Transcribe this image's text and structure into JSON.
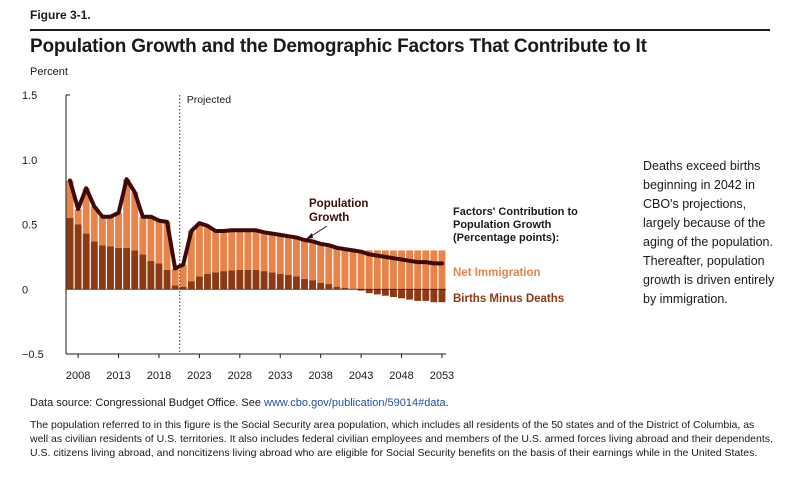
{
  "figure": {
    "label": "Figure 3-1.",
    "title": "Population Growth and the Demographic Factors That Contribute to It",
    "units": "Percent"
  },
  "annotation": "Deaths exceed births beginning in 2042 in CBO's projections, largely because of the aging of the population. Thereafter, population growth is driven entirely by immigration.",
  "source": {
    "prefix": "Data source: Congressional Budget Office. See ",
    "link": "www.cbo.gov/publication/59014#data",
    "suffix": "."
  },
  "footnote": "The population referred to in this figure is the Social Security area population, which includes all residents of the 50 states and of the District of Columbia, as well as civilian residents of U.S. territories. It also includes federal civilian employees and members of the U.S. armed forces living abroad and their dependents, U.S. citizens living abroad, and noncitizens living abroad who are eligible for Social Security benefits on the basis of their earnings while in the United States.",
  "chart_data": {
    "type": "bar",
    "stacked": true,
    "ylim": [
      -0.5,
      1.5
    ],
    "yticks": [
      "1.5",
      "1.0",
      "0.5",
      "0",
      "−0.5"
    ],
    "ytick_values": [
      1.5,
      1.0,
      0.5,
      0,
      -0.5
    ],
    "xticks": [
      "2008",
      "2013",
      "2018",
      "2023",
      "2028",
      "2033",
      "2038",
      "2043",
      "2048",
      "2053"
    ],
    "projection_start": 2021,
    "projected_label": "Projected",
    "legend_title": "Factors' Contribution to Population Growth (Percentage points):",
    "years": [
      2007,
      2008,
      2009,
      2010,
      2011,
      2012,
      2013,
      2014,
      2015,
      2016,
      2017,
      2018,
      2019,
      2020,
      2021,
      2022,
      2023,
      2024,
      2025,
      2026,
      2027,
      2028,
      2029,
      2030,
      2031,
      2032,
      2033,
      2034,
      2035,
      2036,
      2037,
      2038,
      2039,
      2040,
      2041,
      2042,
      2043,
      2044,
      2045,
      2046,
      2047,
      2048,
      2049,
      2050,
      2051,
      2052,
      2053
    ],
    "series": [
      {
        "name": "Births Minus Deaths",
        "color": "#8b3a13",
        "values": [
          0.55,
          0.5,
          0.43,
          0.37,
          0.34,
          0.33,
          0.32,
          0.32,
          0.3,
          0.27,
          0.22,
          0.2,
          0.15,
          0.03,
          0.02,
          0.06,
          0.1,
          0.12,
          0.13,
          0.14,
          0.145,
          0.15,
          0.15,
          0.15,
          0.14,
          0.13,
          0.12,
          0.11,
          0.1,
          0.08,
          0.07,
          0.05,
          0.04,
          0.02,
          0.01,
          0.0,
          -0.01,
          -0.03,
          -0.04,
          -0.05,
          -0.06,
          -0.07,
          -0.08,
          -0.09,
          -0.09,
          -0.1,
          -0.1
        ]
      },
      {
        "name": "Net Immigration",
        "color": "#e8834a",
        "values": [
          0.29,
          0.12,
          0.35,
          0.27,
          0.22,
          0.23,
          0.27,
          0.53,
          0.45,
          0.29,
          0.34,
          0.33,
          0.37,
          0.13,
          0.17,
          0.39,
          0.41,
          0.37,
          0.32,
          0.31,
          0.31,
          0.305,
          0.305,
          0.305,
          0.3,
          0.3,
          0.3,
          0.3,
          0.3,
          0.3,
          0.3,
          0.3,
          0.3,
          0.3,
          0.3,
          0.3,
          0.3,
          0.3,
          0.3,
          0.3,
          0.3,
          0.3,
          0.3,
          0.3,
          0.3,
          0.3,
          0.3
        ]
      },
      {
        "name": "Population Growth",
        "color": "#3d0a0a",
        "values": [
          0.84,
          0.62,
          0.78,
          0.64,
          0.56,
          0.56,
          0.59,
          0.85,
          0.75,
          0.56,
          0.56,
          0.53,
          0.52,
          0.16,
          0.19,
          0.45,
          0.51,
          0.49,
          0.45,
          0.45,
          0.455,
          0.455,
          0.455,
          0.455,
          0.44,
          0.43,
          0.42,
          0.41,
          0.4,
          0.38,
          0.37,
          0.35,
          0.34,
          0.32,
          0.31,
          0.3,
          0.29,
          0.27,
          0.26,
          0.25,
          0.24,
          0.23,
          0.22,
          0.21,
          0.21,
          0.2,
          0.2
        ]
      }
    ]
  }
}
